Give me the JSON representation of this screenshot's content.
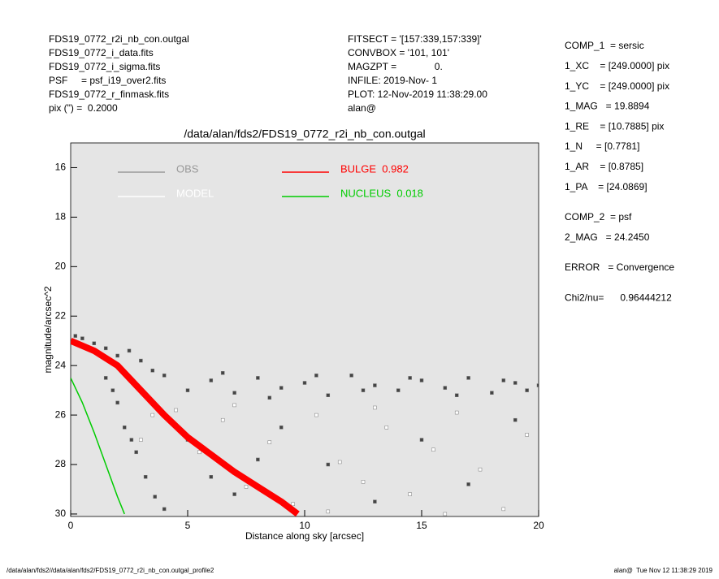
{
  "header": {
    "left": [
      "FDS19_0772_r2i_nb_con.outgal",
      "FDS19_0772_i_data.fits",
      "FDS19_0772_i_sigma.fits",
      "PSF     = psf_i19_over2.fits",
      "FDS19_0772_r_finmask.fits",
      "pix (\") =  0.2000"
    ],
    "middle": [
      "FITSECT = '[157:339,157:339]'",
      "CONVBOX = '101, 101'",
      "MAGZPT =              0.",
      "INFILE: 2019-Nov- 1",
      "PLOT: 12-Nov-2019 11:38:29.00",
      "alan@"
    ],
    "right": [
      [
        "COMP_1  = sersic",
        "1_XC    = [249.0000] pix",
        "1_YC    = [249.0000] pix",
        "1_MAG   = 19.8894",
        "1_RE    = [10.7885] pix",
        "1_N     = [0.7781]",
        "1_AR    = [0.8785]",
        "1_PA    = [24.0869]"
      ],
      [
        "COMP_2  = psf",
        "2_MAG   = 24.2450"
      ],
      [
        "ERROR   = Convergence"
      ],
      [
        "Chi2/nu=      0.96444212"
      ]
    ]
  },
  "footer": {
    "left": "/data/alan/fds2//data/alan/fds2/FDS19_0772_r2i_nb_con.outgal_profile2",
    "right": "alan@  Tue Nov 12 11:38:29 2019"
  },
  "chart_data": {
    "type": "scatter",
    "title": "/data/alan/fds2/FDS19_0772_r2i_nb_con.outgal",
    "x_label": "Distance along sky [arcsec]",
    "y_label": "magnitude/arcsec^2",
    "xlim": [
      0,
      20
    ],
    "ylim": [
      30.1,
      15
    ],
    "xticks": [
      0,
      5,
      10,
      15,
      20
    ],
    "yticks": [
      16,
      18,
      20,
      22,
      24,
      26,
      28,
      30
    ],
    "background": "#e5e5e5",
    "series": [
      {
        "name": "OBS",
        "color": "#444444",
        "label_color": "#999999",
        "mark": "point",
        "x": [
          4,
          5,
          6,
          7,
          8,
          9,
          10,
          11,
          12,
          13,
          14,
          15,
          16,
          17,
          18,
          19,
          20,
          6.5,
          8.5,
          10.5,
          12.5,
          14.5,
          16.5,
          18.5,
          19.5,
          0.2,
          0.5,
          1.0,
          1.5,
          2.0,
          2.5,
          3.0,
          3.5,
          1.5,
          2.0,
          2.3,
          2.8,
          3.2,
          3.6,
          4.0,
          1.8,
          2.6,
          5,
          6,
          7,
          8,
          9,
          11,
          13,
          15,
          17,
          19
        ],
        "values": [
          24.4,
          25.0,
          24.6,
          25.1,
          24.5,
          24.9,
          24.7,
          25.2,
          24.4,
          24.8,
          25.0,
          24.6,
          24.9,
          24.5,
          25.1,
          24.7,
          24.8,
          24.3,
          25.3,
          24.4,
          25.0,
          24.5,
          25.2,
          24.6,
          25.0,
          22.8,
          22.9,
          23.1,
          23.3,
          23.6,
          23.4,
          23.8,
          24.2,
          24.5,
          25.5,
          26.5,
          27.5,
          28.5,
          29.3,
          29.8,
          25.0,
          27.0,
          27,
          28.5,
          29.2,
          27.8,
          26.5,
          28,
          29.5,
          27,
          28.8,
          26.2
        ]
      },
      {
        "name": "MODEL",
        "color": "#ffffff",
        "label_color": "#ffffff",
        "mark": "point",
        "x": [
          4.5,
          5.5,
          6.5,
          7.5,
          8.5,
          9.5,
          10.5,
          11.5,
          12.5,
          13.5,
          14.5,
          15.5,
          16.5,
          17.5,
          18.5,
          19.5,
          3.5,
          3,
          11,
          16,
          7,
          13
        ],
        "values": [
          25.8,
          27.5,
          26.2,
          28.9,
          27.1,
          29.6,
          26.0,
          27.9,
          28.7,
          26.5,
          29.2,
          27.4,
          25.9,
          28.2,
          29.8,
          26.8,
          26.0,
          27,
          29.9,
          30.0,
          25.6,
          25.7
        ]
      },
      {
        "name": "BULGE  0.982",
        "color": "#ff0000",
        "label_color": "#ff0000",
        "mark": "line",
        "line_width": 8,
        "x": [
          0,
          1,
          2,
          3,
          4,
          5,
          6,
          7,
          8,
          9,
          9.7
        ],
        "values": [
          23.0,
          23.4,
          24.0,
          25.0,
          26.0,
          26.9,
          27.6,
          28.3,
          28.9,
          29.5,
          30.0
        ]
      },
      {
        "name": "NUCLEUS  0.018",
        "color": "#00cc00",
        "label_color": "#00cc00",
        "mark": "line",
        "line_width": 1.5,
        "x": [
          0,
          0.5,
          1,
          1.5,
          2,
          2.3
        ],
        "values": [
          24.5,
          25.5,
          26.7,
          28.0,
          29.3,
          30.0
        ]
      }
    ]
  }
}
